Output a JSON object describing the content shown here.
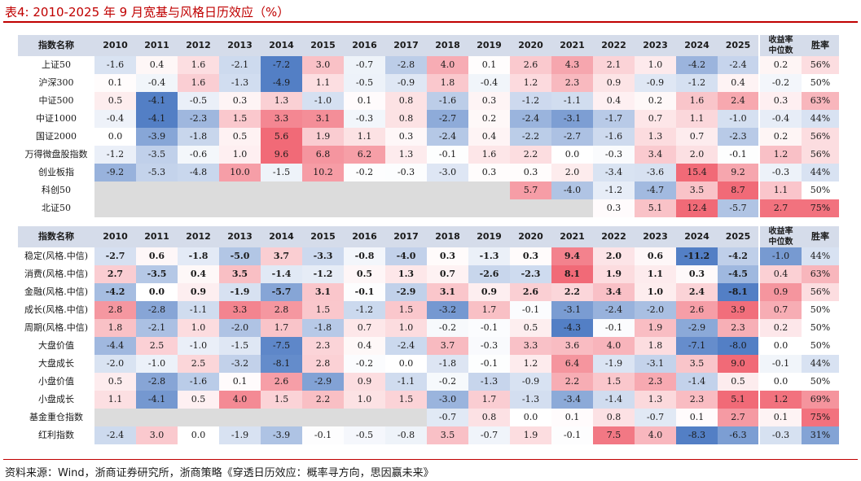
{
  "title": "表4:   2010-2025 年 9 月宽基与风格日历效应（%）",
  "source": "资料来源：Wind，浙商证券研究所，浙商策略《穿透日历效应：概率寻方向，思因赢未来》",
  "columns": [
    "指数名称",
    "2010",
    "2011",
    "2012",
    "2013",
    "2014",
    "2015",
    "2016",
    "2017",
    "2018",
    "2019",
    "2020",
    "2021",
    "2022",
    "2023",
    "2024",
    "2025",
    "收益率中位数",
    "胜率"
  ],
  "median_header_lines": [
    "收益率",
    "中位数"
  ],
  "table1": {
    "rows": [
      {
        "name": "上证50",
        "values": [
          "-1.6",
          "0.4",
          "1.6",
          "-2.1",
          "-7.2",
          "3.0",
          "-0.7",
          "-2.8",
          "4.0",
          "0.1",
          "2.6",
          "4.3",
          "2.1",
          "1.0",
          "-4.2",
          "-2.4"
        ],
        "median": "0.2",
        "win": "56%"
      },
      {
        "name": "沪深300",
        "values": [
          "0.1",
          "-0.4",
          "1.6",
          "-1.3",
          "-4.9",
          "1.1",
          "-0.5",
          "-0.9",
          "1.8",
          "-0.4",
          "1.2",
          "2.3",
          "0.9",
          "-0.9",
          "-1.2",
          "0.4"
        ],
        "median": "-0.2",
        "win": "50%"
      },
      {
        "name": "中证500",
        "values": [
          "0.5",
          "-4.1",
          "-0.5",
          "0.3",
          "1.3",
          "-1.0",
          "0.1",
          "0.8",
          "-1.6",
          "0.3",
          "-1.2",
          "-1.1",
          "0.4",
          "0.2",
          "1.6",
          "2.4"
        ],
        "median": "0.3",
        "win": "63%"
      },
      {
        "name": "中证1000",
        "values": [
          "-0.4",
          "-4.1",
          "-2.3",
          "1.5",
          "3.3",
          "3.1",
          "-0.3",
          "0.8",
          "-2.7",
          "0.2",
          "-2.4",
          "-3.1",
          "-1.7",
          "0.7",
          "1.1",
          "-1.0"
        ],
        "median": "-0.4",
        "win": "44%"
      },
      {
        "name": "国证2000",
        "values": [
          "0.0",
          "-3.9",
          "-1.8",
          "0.5",
          "5.6",
          "1.9",
          "1.1",
          "0.3",
          "-2.4",
          "0.4",
          "-2.2",
          "-2.7",
          "-1.6",
          "1.3",
          "0.7",
          "-2.3"
        ],
        "median": "0.2",
        "win": "56%"
      },
      {
        "name": "万得微盘股指数",
        "values": [
          "-1.2",
          "-3.5",
          "-0.6",
          "1.0",
          "9.6",
          "6.8",
          "6.2",
          "1.3",
          "-0.1",
          "1.6",
          "2.2",
          "0.0",
          "-0.3",
          "3.4",
          "2.0",
          "-0.1"
        ],
        "median": "1.2",
        "win": "56%"
      },
      {
        "name": "创业板指",
        "values": [
          "-9.2",
          "-5.3",
          "-4.8",
          "10.0",
          "-1.5",
          "10.2",
          "-0.2",
          "-0.3",
          "-3.0",
          "0.3",
          "0.3",
          "2.0",
          "-3.4",
          "-3.6",
          "15.4",
          "9.2"
        ],
        "median": "-0.3",
        "win": "44%"
      },
      {
        "name": "科创50",
        "values": [
          "",
          "",
          "",
          "",
          "",
          "",
          "",
          "",
          "",
          "",
          "5.7",
          "-4.0",
          "-1.2",
          "-4.7",
          "3.5",
          "8.7"
        ],
        "median": "1.1",
        "win": "50%"
      },
      {
        "name": "北证50",
        "values": [
          "",
          "",
          "",
          "",
          "",
          "",
          "",
          "",
          "",
          "",
          "",
          "",
          "0.3",
          "5.1",
          "12.4",
          "-5.7"
        ],
        "median": "2.7",
        "win": "75%"
      }
    ]
  },
  "table2": {
    "rows": [
      {
        "name": "稳定(风格.中信)",
        "values": [
          "-2.7",
          "0.6",
          "-1.8",
          "-5.0",
          "3.7",
          "-3.3",
          "-0.8",
          "-4.0",
          "0.3",
          "-1.3",
          "0.3",
          "9.4",
          "2.0",
          "0.6",
          "-11.2",
          "-4.2"
        ],
        "median": "-1.0",
        "win": "44%",
        "bold": true
      },
      {
        "name": "消费(风格.中信)",
        "values": [
          "2.7",
          "-3.5",
          "0.4",
          "3.5",
          "-1.4",
          "-1.2",
          "0.5",
          "1.3",
          "0.7",
          "-2.6",
          "-2.3",
          "8.1",
          "1.9",
          "1.1",
          "0.3",
          "-4.5"
        ],
        "median": "0.4",
        "win": "63%",
        "bold": true
      },
      {
        "name": "金融(风格.中信)",
        "values": [
          "-4.2",
          "0.0",
          "0.9",
          "-1.9",
          "-5.7",
          "3.1",
          "-0.1",
          "-2.9",
          "3.1",
          "0.9",
          "2.6",
          "2.2",
          "3.4",
          "1.0",
          "2.4",
          "-8.1"
        ],
        "median": "0.9",
        "win": "56%",
        "bold": true
      },
      {
        "name": "成长(风格.中信)",
        "values": [
          "2.8",
          "-2.8",
          "-1.1",
          "3.3",
          "2.8",
          "1.5",
          "-1.2",
          "1.5",
          "-3.2",
          "1.7",
          "-0.1",
          "-3.1",
          "-2.4",
          "-2.0",
          "2.6",
          "3.9"
        ],
        "median": "0.7",
        "win": "50%"
      },
      {
        "name": "周期(风格.中信)",
        "values": [
          "1.8",
          "-2.1",
          "1.0",
          "-2.0",
          "1.7",
          "-1.8",
          "0.7",
          "1.0",
          "-0.2",
          "-0.1",
          "0.5",
          "-4.3",
          "-0.1",
          "1.9",
          "-2.9",
          "2.3"
        ],
        "median": "0.2",
        "win": "50%"
      },
      {
        "name": "大盘价值",
        "values": [
          "-4.4",
          "2.5",
          "-1.0",
          "-1.5",
          "-7.5",
          "2.3",
          "0.4",
          "-2.4",
          "3.7",
          "-0.3",
          "3.3",
          "3.6",
          "4.0",
          "1.8",
          "-7.1",
          "-8.0"
        ],
        "median": "0.0",
        "win": "50%"
      },
      {
        "name": "大盘成长",
        "values": [
          "-2.0",
          "-1.0",
          "2.5",
          "-3.2",
          "-8.1",
          "2.8",
          "-0.2",
          "0.0",
          "-1.8",
          "-0.1",
          "1.2",
          "6.4",
          "-1.9",
          "-3.1",
          "3.5",
          "9.0"
        ],
        "median": "-0.1",
        "win": "44%"
      },
      {
        "name": "小盘价值",
        "values": [
          "0.5",
          "-2.8",
          "-1.6",
          "0.1",
          "2.6",
          "-2.9",
          "0.9",
          "-1.1",
          "-0.2",
          "-1.3",
          "-0.9",
          "2.2",
          "1.5",
          "2.3",
          "-1.4",
          "0.5"
        ],
        "median": "0.0",
        "win": "50%"
      },
      {
        "name": "小盘成长",
        "values": [
          "1.1",
          "-4.1",
          "0.5",
          "4.0",
          "1.5",
          "2.2",
          "1.0",
          "1.5",
          "-3.0",
          "1.7",
          "-1.3",
          "-3.4",
          "-1.4",
          "1.3",
          "2.3",
          "5.1"
        ],
        "median": "1.2",
        "win": "69%"
      },
      {
        "name": "基金重仓指数",
        "values": [
          "",
          "",
          "",
          "",
          "",
          "",
          "",
          "",
          "-0.7",
          "0.8",
          "0.0",
          "0.1",
          "0.8",
          "-0.7",
          "0.1",
          "2.7"
        ],
        "median": "0.1",
        "win": "75%"
      },
      {
        "name": "红利指数",
        "values": [
          "-2.4",
          "3.0",
          "0.0",
          "-1.9",
          "-3.9",
          "-0.1",
          "-0.5",
          "-0.8",
          "3.5",
          "-0.7",
          "1.9",
          "-0.1",
          "7.5",
          "4.0",
          "-8.3",
          "-6.3"
        ],
        "median": "-0.3",
        "win": "31%"
      }
    ]
  },
  "colors": {
    "title_red": "#c00000",
    "header_bg": "#d5dcea",
    "empty_bg": "#dcdcdc",
    "pos_max": "#f06270",
    "neg_max": "#4a78c2",
    "neutral": "#ffffff"
  }
}
